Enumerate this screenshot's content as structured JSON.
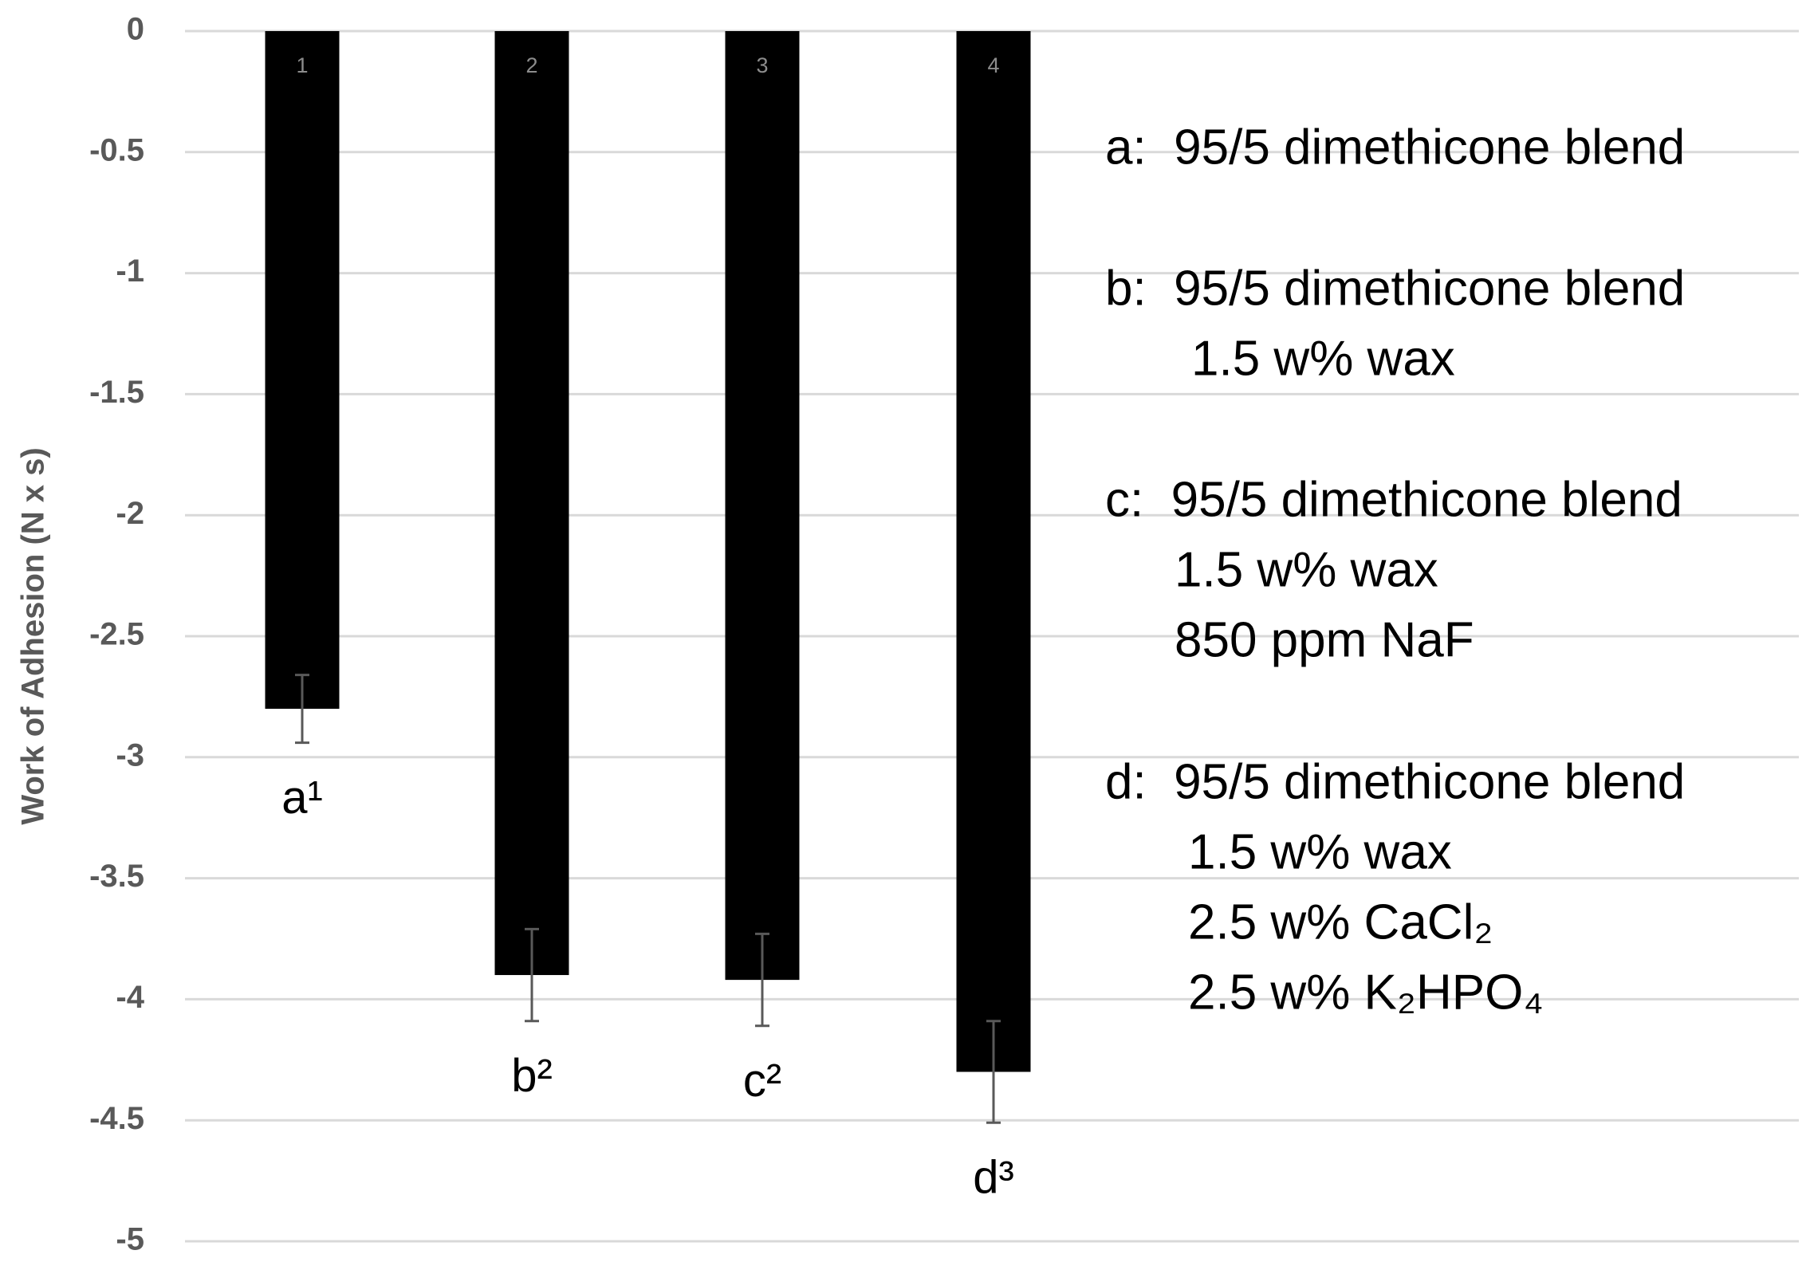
{
  "chart_data": {
    "type": "bar",
    "y_label": "Work of Adhesion (N x s)",
    "categories": [
      "1",
      "2",
      "3",
      "4"
    ],
    "bar_labels": [
      "a¹",
      "b²",
      "c²",
      "d³"
    ],
    "values": [
      -2.8,
      -3.9,
      -3.92,
      -4.3
    ],
    "errors": [
      0.14,
      0.19,
      0.19,
      0.21
    ],
    "color": "#000000",
    "ylim": [
      -5,
      0
    ],
    "yticks": [
      0,
      -0.5,
      -1,
      -1.5,
      -2,
      -2.5,
      -3,
      -3.5,
      -4,
      -4.5,
      -5
    ],
    "grid": true,
    "annotations": [
      {
        "lines": [
          "a:  95/5 dimethicone blend"
        ]
      },
      {
        "lines": [
          "b:  95/5 dimethicone blend",
          "1.5 w% wax"
        ]
      },
      {
        "lines": [
          "c:  95/5 dimethicone blend",
          "1.5 w% wax",
          "850 ppm NaF"
        ]
      },
      {
        "lines": [
          "d:  95/5 dimethicone blend",
          "1.5 w% wax",
          "2.5 w% CaCl₂",
          "2.5 w% K₂HPO₄"
        ]
      }
    ]
  }
}
